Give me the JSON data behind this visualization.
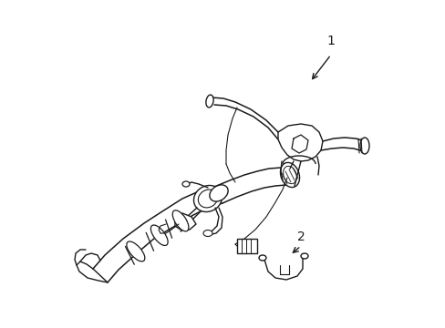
{
  "background_color": "#ffffff",
  "line_color": "#1a1a1a",
  "line_width": 1.0,
  "label_1_text": "1",
  "label_2_text": "2",
  "figsize": [
    4.89,
    3.6
  ],
  "dpi": 100
}
